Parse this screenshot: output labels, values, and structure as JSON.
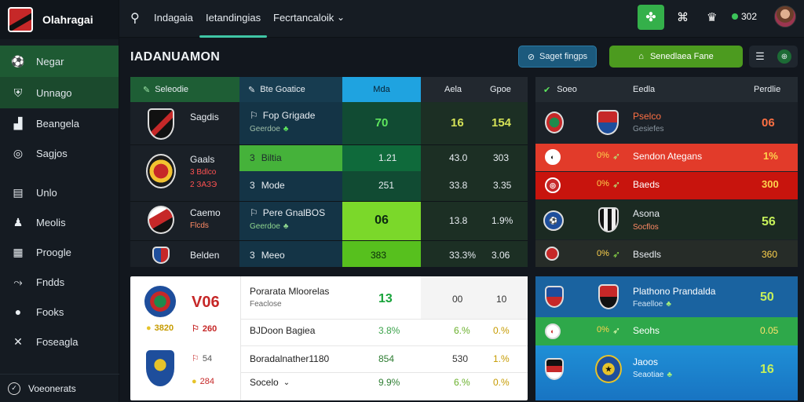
{
  "app": {
    "name": "Olahragai"
  },
  "sidebar": {
    "items": [
      {
        "label": "Negar",
        "icon": "ball-icon"
      },
      {
        "label": "Unnago",
        "icon": "shield-icon"
      },
      {
        "label": "Beangela",
        "icon": "chart-icon"
      },
      {
        "label": "Sagjos",
        "icon": "target-icon"
      },
      {
        "label": "Unlo",
        "icon": "table-icon"
      },
      {
        "label": "Meolis",
        "icon": "people-icon"
      },
      {
        "label": "Proogle",
        "icon": "calendar-icon"
      },
      {
        "label": "Fndds",
        "icon": "trend-icon"
      },
      {
        "label": "Fooks",
        "icon": "ball-icon"
      },
      {
        "label": "Foseagla",
        "icon": "cross-icon"
      }
    ],
    "footer": "Voeonerats"
  },
  "topbar": {
    "tabs": [
      "Indagaia",
      "Ietandingias",
      "Fecrtancaloik"
    ],
    "count": "302"
  },
  "page": {
    "title": "IADANUAMON",
    "filter_button": "Saget fingps",
    "green_button": "Senedlaea Fane"
  },
  "main_table": {
    "headers": [
      "Seleodie",
      "Bte Goatice",
      "Mda",
      "Aela",
      "Gpoe"
    ],
    "rows": [
      {
        "team": "Sagdis",
        "sub": "",
        "desc": "Fop Grigade",
        "note": "Geerdoe",
        "v1": "70",
        "v2": "16",
        "v3": "154"
      },
      {
        "team": "Gaals",
        "sub": "3 Bdlco",
        "desc": "",
        "note": "",
        "v1": "",
        "v2": "",
        "v3": ""
      },
      {
        "team": "",
        "sub": "",
        "desc": "Biltia",
        "note": "",
        "v1": "1.21",
        "v2": "43.0",
        "v3": "303"
      },
      {
        "team": "",
        "sub": "",
        "desc": "Mode",
        "note": "",
        "v1": "251",
        "v2": "33.8",
        "v3": "3.35"
      },
      {
        "team": "Caemo",
        "sub": "Flcds",
        "desc": "Pere GnalBOS",
        "note": "Geerdoe",
        "v1": "06",
        "v2": "13.8",
        "v3": "1.9%"
      },
      {
        "team": "Belden",
        "sub": "",
        "desc": "Meeo",
        "note": "",
        "v1": "383",
        "v2": "33.3%",
        "v3": "3.06"
      }
    ]
  },
  "right_table": {
    "headers": [
      "Soeo",
      "Eedla",
      "Perdlie"
    ],
    "rows": [
      {
        "team": "Pselco",
        "sub": "Gesiefes",
        "pct": "",
        "val": "06"
      },
      {
        "team": "Sendon Ategans",
        "sub": "",
        "pct": "0%",
        "val": "1%"
      },
      {
        "team": "Baeds",
        "sub": "",
        "pct": "0%",
        "val": "300"
      },
      {
        "team": "Asona",
        "sub": "Socflos",
        "pct": "",
        "val": "56"
      },
      {
        "team": "Bsedls",
        "sub": "",
        "pct": "0%",
        "val": "360"
      }
    ]
  },
  "lower_left": {
    "rows": [
      {
        "code": "V06",
        "desc": "Porarata Mloorelas",
        "note": "Feaclose",
        "v1": "13",
        "v2": "00",
        "v3": "10"
      },
      {
        "left": "3820",
        "right": "260",
        "desc": "BJDoon Bagiea",
        "v1": "3.8%",
        "v2": "6.%",
        "v3": "0.%"
      },
      {
        "left": "54",
        "desc": "Boradalnather1180",
        "v1": "854",
        "v2": "530",
        "v3": "1.%"
      },
      {
        "left": "284",
        "desc": "Socelo",
        "v1": "9.9%",
        "v2": "6.%",
        "v3": "0.%"
      }
    ]
  },
  "lower_right": {
    "rows": [
      {
        "team": "Plathono Prandalda",
        "sub": "Feaelloe",
        "val": "50"
      },
      {
        "team": "Seohs",
        "sub": "",
        "pct": "0%",
        "val": "0.05"
      },
      {
        "team": "Jaoos",
        "sub": "Seaotiae",
        "val": "16"
      }
    ]
  },
  "colors": {
    "accent": "#3fc6a5",
    "green": "#4c9b1f",
    "red": "#e02828",
    "blue": "#1e82c8"
  }
}
